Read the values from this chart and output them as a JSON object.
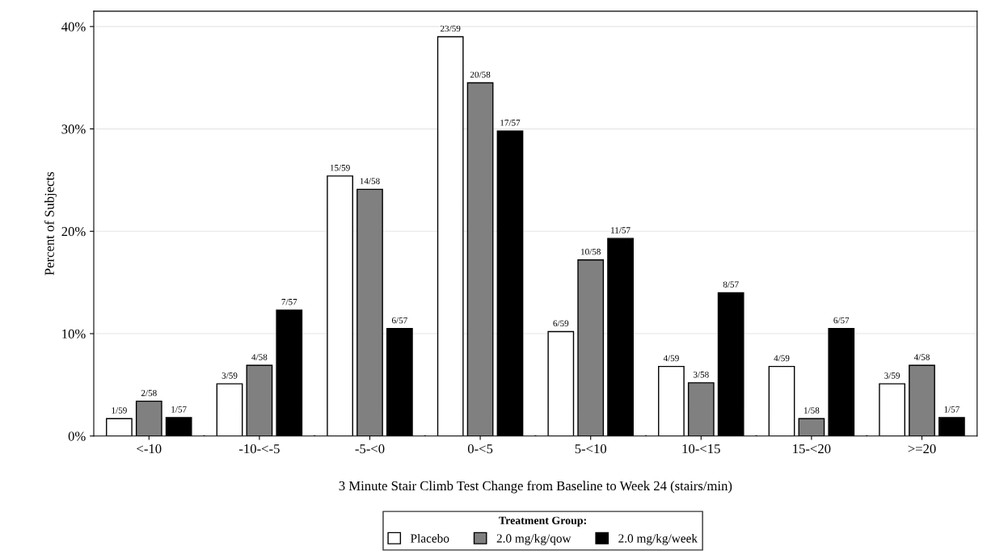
{
  "chart_data": {
    "type": "bar",
    "xlabel": "3 Minute Stair Climb Test Change from Baseline to Week 24 (stairs/min)",
    "ylabel": "Percent of Subjects",
    "legend_title": "Treatment Group:",
    "categories": [
      "<-10",
      "-10-<-5",
      "-5-<0",
      "0-<5",
      "5-<10",
      "10-<15",
      "15-<20",
      ">=20"
    ],
    "series": [
      {
        "name": "Placebo",
        "color": "#ffffff",
        "values": [
          1.7,
          5.1,
          25.4,
          39.0,
          10.2,
          6.8,
          6.8,
          5.1
        ],
        "value_labels": [
          "1/59",
          "3/59",
          "15/59",
          "23/59",
          "6/59",
          "4/59",
          "4/59",
          "3/59"
        ]
      },
      {
        "name": "2.0 mg/kg/qow",
        "color": "#808080",
        "values": [
          3.4,
          6.9,
          24.1,
          34.5,
          17.2,
          5.2,
          1.7,
          6.9
        ],
        "value_labels": [
          "2/58",
          "4/58",
          "14/58",
          "20/58",
          "10/58",
          "3/58",
          "1/58",
          "4/58"
        ]
      },
      {
        "name": "2.0 mg/kg/week",
        "color": "#000000",
        "values": [
          1.8,
          12.3,
          10.5,
          29.8,
          19.3,
          14.0,
          10.5,
          1.8
        ],
        "value_labels": [
          "1/57",
          "7/57",
          "6/57",
          "17/57",
          "11/57",
          "8/57",
          "6/57",
          "1/57"
        ]
      }
    ],
    "ylim": [
      0,
      41.5
    ],
    "yticks": [
      {
        "value": 0,
        "label": "0%"
      },
      {
        "value": 10,
        "label": "10%"
      },
      {
        "value": 20,
        "label": "20%"
      },
      {
        "value": 30,
        "label": "30%"
      },
      {
        "value": 40,
        "label": "40%"
      }
    ],
    "grid": "y",
    "legend": "bottom"
  }
}
